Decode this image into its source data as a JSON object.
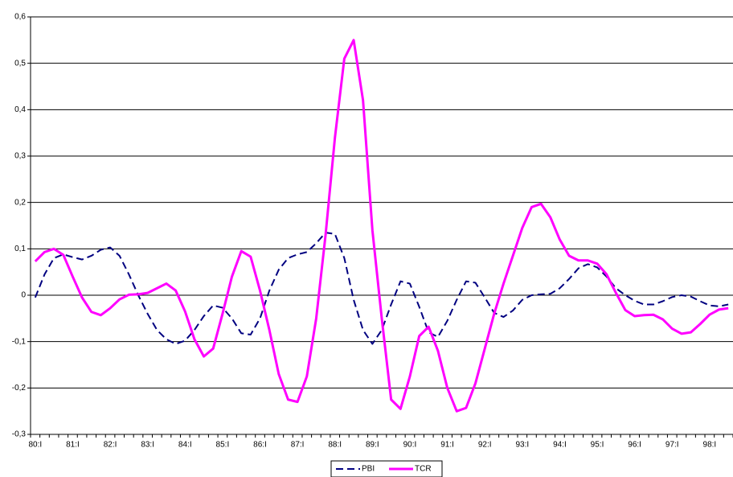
{
  "chart_data": {
    "type": "line",
    "categories": [
      "80:I",
      null,
      null,
      null,
      "81:I",
      null,
      null,
      null,
      "82:I",
      null,
      null,
      null,
      "83:I",
      null,
      null,
      null,
      "84:I",
      null,
      null,
      null,
      "85:I",
      null,
      null,
      null,
      "86:I",
      null,
      null,
      null,
      "87:I",
      null,
      null,
      null,
      "88:I",
      null,
      null,
      null,
      "89:I",
      null,
      null,
      null,
      "90:I",
      null,
      null,
      null,
      "91:I",
      null,
      null,
      null,
      "92:I",
      null,
      null,
      null,
      "93:I",
      null,
      null,
      null,
      "94:I",
      null,
      null,
      null,
      "95:I",
      null,
      null,
      null,
      "96:I",
      null,
      null,
      null,
      "97:I",
      null,
      null,
      null,
      "98:I",
      null,
      null
    ],
    "series": [
      {
        "name": "PBI",
        "color": "#000080",
        "dashed": true,
        "values": [
          -0.005,
          0.045,
          0.08,
          0.088,
          0.082,
          0.077,
          0.085,
          0.098,
          0.103,
          0.085,
          0.045,
          0.0,
          -0.04,
          -0.075,
          -0.095,
          -0.105,
          -0.098,
          -0.075,
          -0.045,
          -0.022,
          -0.027,
          -0.05,
          -0.082,
          -0.085,
          -0.05,
          0.01,
          0.055,
          0.08,
          0.088,
          0.093,
          0.112,
          0.135,
          0.132,
          0.08,
          -0.01,
          -0.075,
          -0.105,
          -0.075,
          -0.02,
          0.03,
          0.025,
          -0.025,
          -0.08,
          -0.09,
          -0.055,
          -0.01,
          0.03,
          0.027,
          -0.005,
          -0.038,
          -0.047,
          -0.033,
          -0.01,
          0.0,
          0.002,
          0.003,
          0.015,
          0.035,
          0.058,
          0.067,
          0.06,
          0.04,
          0.015,
          0.0,
          -0.012,
          -0.02,
          -0.02,
          -0.013,
          -0.004,
          0.0,
          -0.003,
          -0.013,
          -0.022,
          -0.024,
          -0.02
        ]
      },
      {
        "name": "TCR",
        "color": "#ff00ff",
        "dashed": false,
        "values": [
          0.073,
          0.093,
          0.1,
          0.087,
          0.04,
          -0.005,
          -0.036,
          -0.043,
          -0.028,
          -0.009,
          0.001,
          0.002,
          0.005,
          0.015,
          0.025,
          0.01,
          -0.035,
          -0.095,
          -0.132,
          -0.115,
          -0.04,
          0.04,
          0.095,
          0.083,
          0.01,
          -0.075,
          -0.17,
          -0.225,
          -0.23,
          -0.175,
          -0.05,
          0.13,
          0.34,
          0.51,
          0.55,
          0.42,
          0.14,
          -0.05,
          -0.225,
          -0.245,
          -0.175,
          -0.088,
          -0.068,
          -0.12,
          -0.2,
          -0.25,
          -0.243,
          -0.19,
          -0.115,
          -0.04,
          0.025,
          0.085,
          0.145,
          0.19,
          0.197,
          0.168,
          0.12,
          0.085,
          0.075,
          0.075,
          0.068,
          0.045,
          0.005,
          -0.032,
          -0.045,
          -0.043,
          -0.042,
          -0.052,
          -0.072,
          -0.083,
          -0.08,
          -0.062,
          -0.042,
          -0.031,
          -0.028
        ]
      }
    ],
    "ylim": [
      -0.3,
      0.6
    ],
    "yticks": [
      {
        "value": -0.3,
        "label": "-0,3"
      },
      {
        "value": -0.2,
        "label": "-0,2"
      },
      {
        "value": -0.1,
        "label": "-0,1"
      },
      0,
      {
        "value": 0.1,
        "label": "0,1"
      },
      {
        "value": 0.2,
        "label": "0,2"
      },
      {
        "value": 0.3,
        "label": "0,3"
      },
      {
        "value": 0.4,
        "label": "0,4"
      },
      {
        "value": 0.5,
        "label": "0,5"
      },
      {
        "value": 0.6,
        "label": "0,6"
      }
    ],
    "grid": true,
    "legend": "bottom"
  }
}
